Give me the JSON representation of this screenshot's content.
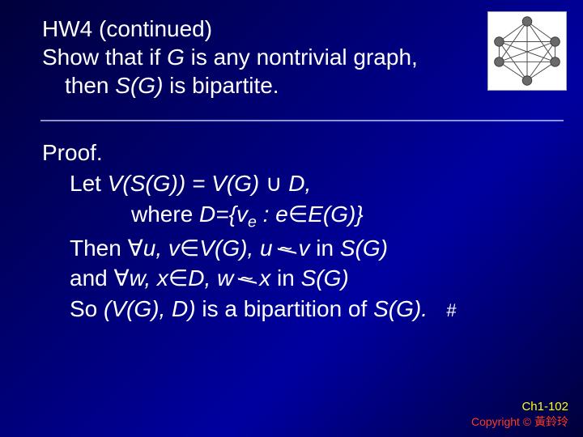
{
  "header": {
    "line1": "HW4 (continued)",
    "line2_showthatif": "Show that if ",
    "line2_G": "G",
    "line2_rest": " is any nontrivial graph,",
    "line3_then": "then ",
    "line3_SG": "S",
    "line3_paren_open": "(",
    "line3_Ginner": "G",
    "line3_paren_close": ")",
    "line3_rest": " is bipartite."
  },
  "body": {
    "proof": "Proof.",
    "let": "Let ",
    "VSG": "V",
    "open": "(",
    "S": "S",
    "G": "G",
    "close": ")",
    "eq": " = ",
    "cup": " ∪ ",
    "D": "D",
    "comma": ",",
    "where": "where ",
    "Deq": "D",
    "equals_set": "={",
    "v": "v",
    "e_sub": "e",
    "colon": " : ",
    "e": "e",
    "in": "∈",
    "E": "E",
    "set_close": ")}",
    "then": "Then  ",
    "forall": "∀",
    "u": "u",
    "sep": ", ",
    "in2": "∈",
    "inSG": " in ",
    "and": "and ",
    "w": "w",
    "x": "x",
    "so": "So ",
    "bipart": " is a bipartition of ",
    "period": ".",
    "hash": "#"
  },
  "graph": {
    "bg": "#ffffff",
    "node_fill": "#6a6a6a",
    "node_stroke": "#3a3a3a",
    "edge": "#4a4a4a",
    "octa": [
      [
        50,
        12
      ],
      [
        86,
        38
      ],
      [
        86,
        64
      ],
      [
        50,
        88
      ],
      [
        14,
        64
      ],
      [
        14,
        38
      ]
    ],
    "r": 6
  },
  "footer": {
    "ch": "Ch1-102",
    "copy": "Copyright © 黃鈴玲"
  },
  "colors": {
    "slide_bg_stop1": "#00003a",
    "slide_bg_stop2": "#000070",
    "slide_bg_stop3": "#0000a0",
    "text": "#ffffff",
    "hr": "#c8d4ff",
    "footer_ch": "#ffff00",
    "footer_copy": "#ff3b1f"
  }
}
